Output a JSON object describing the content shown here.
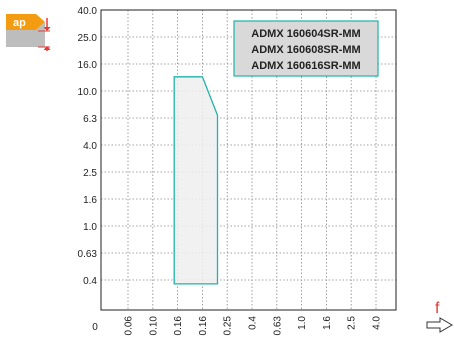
{
  "chart_data": {
    "type": "area",
    "y_tick_labels": [
      "40.0",
      "25.0",
      "16.0",
      "10.0",
      "6.3",
      "4.0",
      "2.5",
      "1.6",
      "1.0",
      "0.63",
      "0.4"
    ],
    "x_tick_labels": [
      "0",
      "0.06",
      "0.10",
      "0.16",
      "0.16",
      "0.25",
      "0.4",
      "0.63",
      "1.0",
      "1.6",
      "2.5",
      "4.0"
    ],
    "x_axis_symbol": "f",
    "depth_symbol": "ap",
    "legend": [
      "ADMX 160604SR-MM",
      "ADMX 160608SR-MM",
      "ADMX 160616SR-MM"
    ],
    "legend_position": "top-right",
    "grid": "dotted",
    "colors": {
      "region_fill": "#eeeeee",
      "region_stroke": "#20b2aa",
      "legend_fill": "#d9d9d9",
      "legend_stroke": "#20b2aa",
      "icon_orange": "#f39c12",
      "icon_red": "#e53935",
      "arrow_stroke": "#333333"
    },
    "region": {
      "vertices": [
        {
          "x": 0.15,
          "y": 0.34
        },
        {
          "x": 0.15,
          "y": 12.5
        },
        {
          "x": 0.18,
          "y": 12.5
        },
        {
          "x": 0.22,
          "y": 6.4
        },
        {
          "x": 0.22,
          "y": 0.34
        }
      ]
    }
  }
}
